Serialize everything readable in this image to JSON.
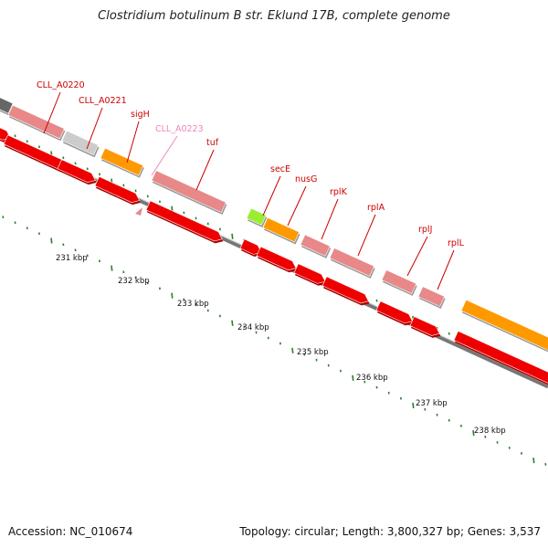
{
  "title": "Clostridium botulinum B str. Eklund 17B, complete genome",
  "footer": {
    "accession": "Accession: NC_010674",
    "info": "Topology: circular; Length: 3,800,327 bp; Genes: 3,537"
  },
  "scale_labels": [
    "231 kbp",
    "232 kbp",
    "233 kbp",
    "234 kbp",
    "235 kbp",
    "236 kbp",
    "237 kbp",
    "238 kbp"
  ],
  "gene_labels": [
    {
      "text": "CLL_A0220",
      "color": "#cc0000"
    },
    {
      "text": "CLL_A0221",
      "color": "#cc0000"
    },
    {
      "text": "sigH",
      "color": "#cc0000"
    },
    {
      "text": "CLL_A0223",
      "color": "#ee88bb"
    },
    {
      "text": "tuf",
      "color": "#cc0000"
    },
    {
      "text": "secE",
      "color": "#cc0000"
    },
    {
      "text": "nusG",
      "color": "#cc0000"
    },
    {
      "text": "rplK",
      "color": "#cc0000"
    },
    {
      "text": "rplA",
      "color": "#cc0000"
    },
    {
      "text": "rplJ",
      "color": "#cc0000"
    },
    {
      "text": "rplL",
      "color": "#cc0000"
    }
  ],
  "colors": {
    "backbone": "#888888",
    "cds_arrow": "#ee0000",
    "gene_pink": "#e88888",
    "gene_orange": "#ff9900",
    "gene_gray": "#cccccc",
    "gene_green": "#99ee33",
    "tick_green": "#2e7d2e"
  }
}
